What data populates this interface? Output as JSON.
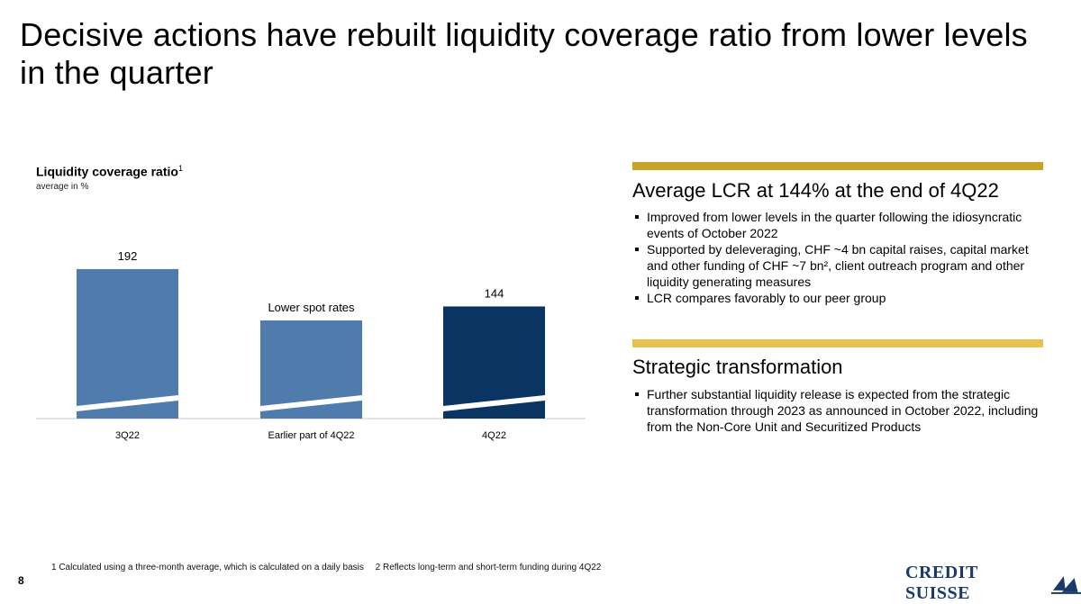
{
  "title": "Decisive actions have rebuilt liquidity coverage ratio from lower levels in the quarter",
  "chart_heading": {
    "title": "Liquidity coverage ratio",
    "title_sup": "1",
    "unit": "average in %"
  },
  "chart_data": {
    "type": "bar",
    "categories": [
      "3Q22",
      "Earlier part of 4Q22",
      "4Q22"
    ],
    "values": [
      192,
      null,
      144
    ],
    "bar_heights_relative": [
      192,
      126,
      144
    ],
    "data_labels": [
      "192",
      "Lower spot rates",
      "144"
    ],
    "colors": [
      "#4f7cad",
      "#4f7cad",
      "#0a3563"
    ],
    "axis_break": true,
    "title": "Liquidity coverage ratio",
    "ylabel": "average in %",
    "grid": false
  },
  "colors": {
    "gold": "#c9a227",
    "gold_light": "#e8c24f",
    "navy": "#0a3563",
    "blue": "#4f7cad",
    "brand": "#1b3a6b"
  },
  "panel1": {
    "heading": "Average LCR at 144% at the end of 4Q22",
    "bullets": [
      "Improved from lower levels in the quarter following the idiosyncratic events of October 2022",
      "Supported by deleveraging, CHF ~4 bn capital raises, capital market and other funding of CHF ~7 bn², client outreach program and other liquidity generating measures",
      "LCR compares favorably to our peer group"
    ]
  },
  "panel2": {
    "heading": "Strategic transformation",
    "bullets": [
      "Further substantial liquidity release is expected from the strategic transformation through 2023 as announced in October 2022, including from the Non-Core Unit and Securitized Products"
    ]
  },
  "footnotes": [
    "1 Calculated using a three-month average, which is calculated on a daily basis",
    "2 Reflects long-term and short-term funding during 4Q22"
  ],
  "page_number": "8",
  "logo": {
    "text": "CREDIT SUISSE",
    "icon": "sails-icon"
  }
}
